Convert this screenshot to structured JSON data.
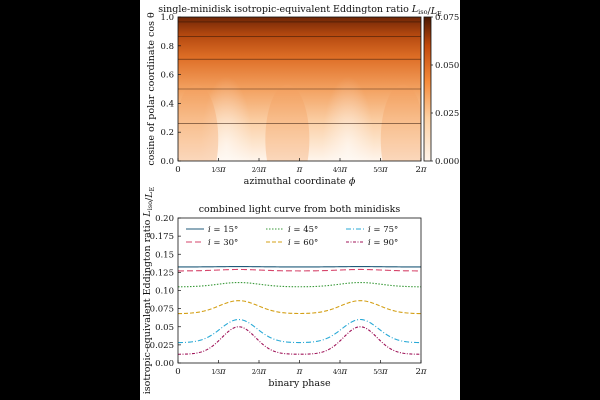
{
  "chart_data": [
    {
      "type": "heatmap",
      "title": "single-minidisk isotropic-equivalent Eddington ratio L_iso/L_E",
      "xlabel": "azimuthal coordinate ϕ",
      "ylabel": "cosine of polar coordinate cos θ",
      "xlim": [
        0,
        6.2832
      ],
      "ylim": [
        0,
        1.0
      ],
      "x_ticks": [
        {
          "value": 0,
          "label": "0"
        },
        {
          "value": 1.0472,
          "label": "⅓π"
        },
        {
          "value": 2.0944,
          "label": "⅔π"
        },
        {
          "value": 3.1416,
          "label": "π"
        },
        {
          "value": 4.1888,
          "label": "4/3π"
        },
        {
          "value": 5.236,
          "label": "5/3π"
        },
        {
          "value": 6.2832,
          "label": "2π"
        }
      ],
      "y_ticks": [
        {
          "value": 0.0,
          "label": "0.0"
        },
        {
          "value": 0.2,
          "label": "0.2"
        },
        {
          "value": 0.4,
          "label": "0.4"
        },
        {
          "value": 0.6,
          "label": "0.6"
        },
        {
          "value": 0.8,
          "label": "0.8"
        },
        {
          "value": 1.0,
          "label": "1.0"
        }
      ],
      "colorbar": {
        "range": [
          0,
          0.075
        ],
        "ticks": [
          {
            "value": 0.0,
            "label": "0.000"
          },
          {
            "value": 0.025,
            "label": "0.025"
          },
          {
            "value": 0.05,
            "label": "0.050"
          },
          {
            "value": 0.075,
            "label": "0.075"
          }
        ],
        "colormap": "white-orange-dark-brown"
      },
      "overlay_lines_cos_theta": [
        0.259,
        0.5,
        0.707,
        0.866,
        0.966
      ],
      "grid": false
    },
    {
      "type": "line",
      "title": "combined light curve from both minidisks",
      "xlabel": "binary phase",
      "ylabel": "isotropic-equivalent Eddington ratio L_iso/L_E",
      "xlim": [
        0,
        6.2832
      ],
      "ylim": [
        0,
        0.2
      ],
      "x_ticks": [
        {
          "value": 0,
          "label": "0"
        },
        {
          "value": 1.0472,
          "label": "⅓π"
        },
        {
          "value": 2.0944,
          "label": "⅔π"
        },
        {
          "value": 3.1416,
          "label": "π"
        },
        {
          "value": 4.1888,
          "label": "4/3π"
        },
        {
          "value": 5.236,
          "label": "5/3π"
        },
        {
          "value": 6.2832,
          "label": "2π"
        }
      ],
      "y_ticks": [
        {
          "value": 0.0,
          "label": "0.00"
        },
        {
          "value": 0.025,
          "label": "0.025"
        },
        {
          "value": 0.05,
          "label": "0.05"
        },
        {
          "value": 0.075,
          "label": "0.075"
        },
        {
          "value": 0.1,
          "label": "0.10"
        },
        {
          "value": 0.125,
          "label": "0.125"
        },
        {
          "value": 0.15,
          "label": "0.15"
        },
        {
          "value": 0.175,
          "label": "0.175"
        },
        {
          "value": 0.2,
          "label": "0.20"
        }
      ],
      "legend_placement": "top, two rows",
      "grid": false,
      "series": [
        {
          "name": "i = 15°",
          "color": "#1f5a7a",
          "dash": "solid",
          "base": 0.1325,
          "amp": 0.0005,
          "peaks": [
            1.5708,
            4.7124
          ],
          "width": 0.8
        },
        {
          "name": "i = 30°",
          "color": "#d6456b",
          "dash": "6,3",
          "base": 0.127,
          "amp": 0.002,
          "peaks": [
            1.5708,
            4.7124
          ],
          "width": 0.8
        },
        {
          "name": "i = 45°",
          "color": "#3a9a3a",
          "dash": "1.5,1.5",
          "base": 0.105,
          "amp": 0.006,
          "peaks": [
            1.5708,
            4.7124
          ],
          "width": 0.8
        },
        {
          "name": "i = 60°",
          "color": "#d4a017",
          "dash": "4,2",
          "base": 0.068,
          "amp": 0.018,
          "peaks": [
            1.5708,
            4.7124
          ],
          "width": 0.75
        },
        {
          "name": "i = 75°",
          "color": "#29a9d6",
          "dash": "5,2,1,2",
          "base": 0.028,
          "amp": 0.032,
          "peaks": [
            1.5708,
            4.7124
          ],
          "width": 0.7
        },
        {
          "name": "i = 90°",
          "color": "#a0155a",
          "dash": "3,1.5,1,1.5",
          "base": 0.012,
          "amp": 0.038,
          "peaks": [
            1.5708,
            4.7124
          ],
          "width": 0.65
        }
      ]
    }
  ]
}
